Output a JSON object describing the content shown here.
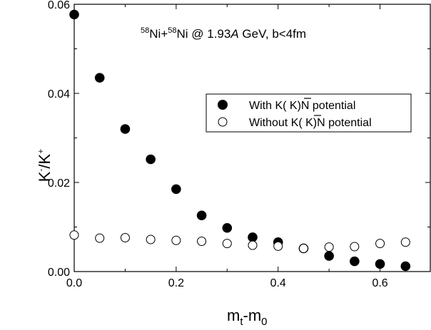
{
  "chart_data": {
    "type": "scatter",
    "x_ticks": [
      "0.0",
      "0.2",
      "0.4",
      "0.6"
    ],
    "y_ticks": [
      "0.00",
      "0.02",
      "0.04",
      "0.06"
    ],
    "xlim": [
      0,
      0.7
    ],
    "ylim": [
      0,
      0.06
    ],
    "xlabel": {
      "base": "m",
      "sub1": "t",
      "mid": "-m",
      "sub2": "0"
    },
    "ylabel": {
      "k1": "K",
      "sup1": "-",
      "slash": "/K",
      "sup2": "+"
    },
    "annotation": {
      "sup1": "58",
      "el1": "Ni",
      "plus": "+",
      "sup2": "58",
      "el2": "Ni @ 1.93",
      "italic": "A",
      "rest": " GeV, b<4fm"
    },
    "legend": {
      "position": "center-right",
      "entries": [
        {
          "marker": "filled-circle",
          "text": "With K(  K)N potential"
        },
        {
          "marker": "open-circle",
          "text": "Without K(  K)N potential"
        }
      ]
    },
    "series": [
      {
        "marker": "filled",
        "color": "#000000",
        "x": [
          0.0,
          0.05,
          0.1,
          0.15,
          0.2,
          0.25,
          0.3,
          0.35,
          0.4,
          0.45,
          0.5,
          0.55,
          0.6,
          0.65
        ],
        "y": [
          0.0577,
          0.0435,
          0.032,
          0.0252,
          0.0185,
          0.0126,
          0.0098,
          0.0077,
          0.0066,
          0.0052,
          0.0035,
          0.0023,
          0.0017,
          0.0012
        ]
      },
      {
        "marker": "open",
        "color": "#000000",
        "x": [
          0.0,
          0.05,
          0.1,
          0.15,
          0.2,
          0.25,
          0.3,
          0.35,
          0.4,
          0.45,
          0.5,
          0.55,
          0.6,
          0.65
        ],
        "y": [
          0.0082,
          0.0075,
          0.0076,
          0.0072,
          0.007,
          0.0068,
          0.0063,
          0.0059,
          0.0057,
          0.0052,
          0.0055,
          0.0056,
          0.0063,
          0.0066
        ]
      }
    ]
  }
}
